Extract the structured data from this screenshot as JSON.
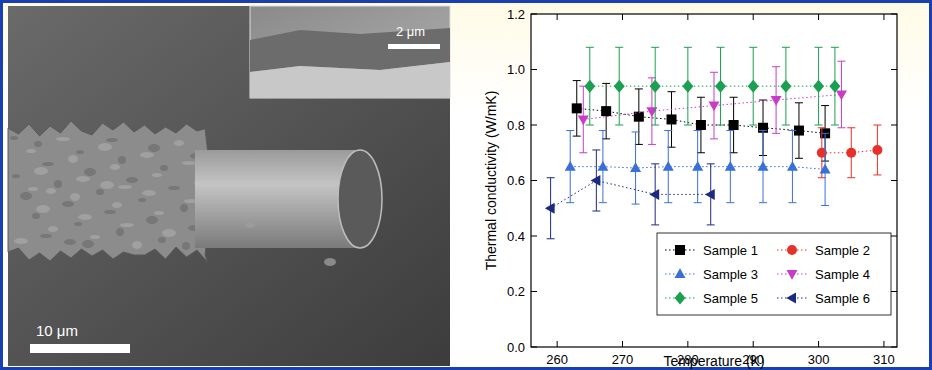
{
  "micrograph": {
    "scale_bar": "10 μm",
    "inset_scale_bar": "2 μm"
  },
  "chart_data": {
    "type": "scatter",
    "x_label": "Temperature (K)",
    "y_label": "Thermal conductivity (W/mK)",
    "xlim": [
      256,
      312
    ],
    "xticks": [
      260,
      270,
      280,
      290,
      300,
      310
    ],
    "ylim": [
      0,
      1.2
    ],
    "yticks": [
      {
        "value": 0,
        "label": "0.0"
      },
      0.2,
      0.4,
      0.6,
      0.8,
      {
        "value": 1,
        "label": "1.0"
      },
      1.2
    ],
    "legend": "lower right",
    "line_style": "dotted",
    "series": [
      {
        "name": "Sample 1",
        "color": "#000000",
        "marker": "square",
        "x": [
          263,
          267.5,
          272.5,
          277.5,
          282,
          287,
          291.5,
          297,
          301
        ],
        "values": [
          0.86,
          0.85,
          0.83,
          0.82,
          0.8,
          0.8,
          0.79,
          0.78,
          0.77
        ],
        "errors": [
          0.1,
          0.1,
          0.1,
          0.1,
          0.1,
          0.1,
          0.1,
          0.1,
          0.1
        ]
      },
      {
        "name": "Sample 2",
        "color": "#e8302a",
        "marker": "circle",
        "x": [
          300.5,
          305,
          309
        ],
        "values": [
          0.7,
          0.7,
          0.71
        ],
        "errors": [
          0.09,
          0.09,
          0.09
        ]
      },
      {
        "name": "Sample 3",
        "color": "#3a6fd8",
        "marker": "triangle-up",
        "x": [
          262,
          267,
          272,
          277,
          281.5,
          286.5,
          291.5,
          296,
          301
        ],
        "values": [
          0.65,
          0.65,
          0.645,
          0.65,
          0.65,
          0.65,
          0.65,
          0.65,
          0.64
        ],
        "errors": [
          0.13,
          0.13,
          0.13,
          0.13,
          0.13,
          0.13,
          0.13,
          0.13,
          0.13
        ]
      },
      {
        "name": "Sample 4",
        "color": "#c83cc8",
        "marker": "triangle-down",
        "x": [
          264,
          274.5,
          284,
          293.5,
          303.5
        ],
        "values": [
          0.82,
          0.85,
          0.87,
          0.89,
          0.91
        ],
        "errors": [
          0.12,
          0.12,
          0.12,
          0.12,
          0.12
        ]
      },
      {
        "name": "Sample 5",
        "color": "#1aa050",
        "marker": "diamond",
        "x": [
          265,
          269.5,
          275,
          280,
          285,
          290,
          295,
          300,
          302.5
        ],
        "values": [
          0.94,
          0.94,
          0.94,
          0.94,
          0.94,
          0.94,
          0.94,
          0.94,
          0.94
        ],
        "errors": [
          0.14,
          0.14,
          0.14,
          0.14,
          0.14,
          0.14,
          0.14,
          0.14,
          0.14
        ]
      },
      {
        "name": "Sample 6",
        "color": "#1c2a80",
        "marker": "triangle-left",
        "x": [
          259,
          266,
          275,
          283.5
        ],
        "values": [
          0.5,
          0.6,
          0.55,
          0.55
        ],
        "errors": [
          0.11,
          0.11,
          0.11,
          0.11
        ]
      }
    ]
  }
}
